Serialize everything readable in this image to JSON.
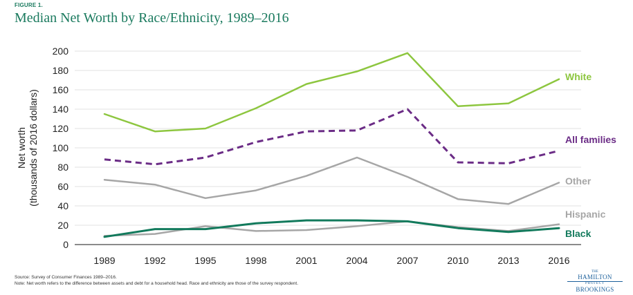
{
  "figure_label": "FIGURE 1.",
  "chart_data": {
    "type": "line",
    "title": "Median Net Worth by Race/Ethnicity, 1989–2016",
    "xlabel": "",
    "ylabel_line1": "Net worth",
    "ylabel_line2": "(thousands of 2016 dollars)",
    "ylim": [
      0,
      200
    ],
    "yticks": [
      0,
      20,
      40,
      60,
      80,
      100,
      120,
      140,
      160,
      180,
      200
    ],
    "grid": true,
    "categories": [
      "1989",
      "1992",
      "1995",
      "1998",
      "2001",
      "2004",
      "2007",
      "2010",
      "2013",
      "2016"
    ],
    "series": [
      {
        "name": "White",
        "color": "#8dc63f",
        "style": "solid",
        "values": [
          135,
          117,
          120,
          141,
          166,
          179,
          198,
          143,
          146,
          171
        ]
      },
      {
        "name": "All families",
        "color": "#6b2c86",
        "style": "dashed",
        "values": [
          88,
          83,
          90,
          106,
          117,
          118,
          140,
          85,
          84,
          97
        ]
      },
      {
        "name": "Other",
        "color": "#a6a6a6",
        "style": "solid",
        "values": [
          67,
          62,
          48,
          56,
          71,
          90,
          70,
          47,
          42,
          64
        ]
      },
      {
        "name": "Hispanic",
        "color": "#a6a6a6",
        "style": "solid",
        "values": [
          9,
          11,
          19,
          14,
          15,
          19,
          24,
          18,
          14,
          21
        ]
      },
      {
        "name": "Black",
        "color": "#127a5c",
        "style": "solid",
        "values": [
          8,
          16,
          16,
          22,
          25,
          25,
          24,
          17,
          13,
          17
        ]
      }
    ]
  },
  "source_note": "Source: Survey of Consumer Finances 1989–2016.",
  "definition_note": "Note: Net worth refers to the difference between assets and debt for a household head. Race and ethnicity are those of the survey respondent.",
  "logo": {
    "the": "THE",
    "hamilton": "HAMILTON",
    "project": "PROJECT",
    "brookings": "BROOKINGS"
  }
}
